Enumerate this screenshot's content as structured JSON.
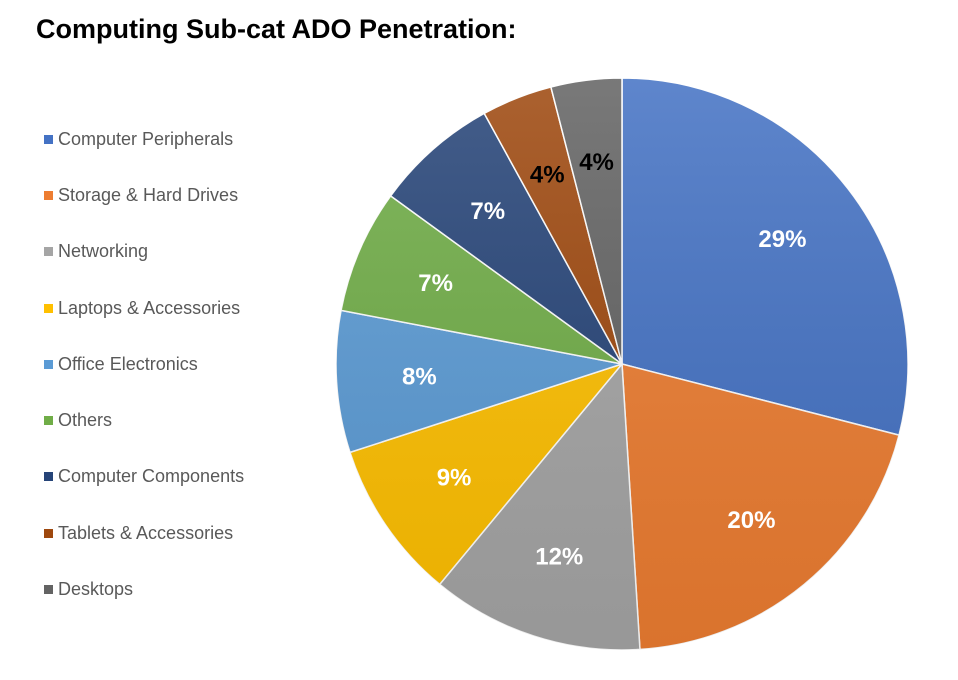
{
  "chart_data": {
    "type": "pie",
    "title": "Computing Sub-cat ADO Penetration:",
    "legend_position": "left",
    "categories": [
      "Computer Peripherals",
      "Storage & Hard Drives",
      "Networking",
      "Laptops & Accessories",
      "Office Electronics",
      "Others",
      "Computer Components",
      "Tablets & Accessories",
      "Desktops"
    ],
    "values": [
      29,
      20,
      12,
      9,
      8,
      7,
      7,
      4,
      4
    ],
    "labels": [
      "29%",
      "20%",
      "12%",
      "9%",
      "8%",
      "7%",
      "7%",
      "4%",
      "4%"
    ],
    "colors": [
      "#4472c4",
      "#ed7d31",
      "#a5a5a5",
      "#ffc000",
      "#5b9bd5",
      "#70ad47",
      "#264478",
      "#9e480e",
      "#636363"
    ],
    "label_colors": [
      "#ffffff",
      "#ffffff",
      "#ffffff",
      "#ffffff",
      "#ffffff",
      "#ffffff",
      "#ffffff",
      "#000000",
      "#000000"
    ],
    "start_angle_deg": 0,
    "direction": "clockwise"
  }
}
